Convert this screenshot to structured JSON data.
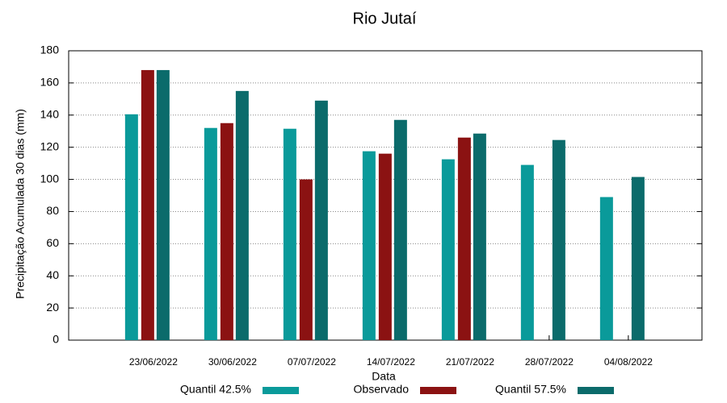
{
  "chart_data": {
    "type": "bar",
    "title": "Rio Jutaí",
    "x_label": "Data",
    "y_label": "Precipitação Acumulada 30 dias (mm)",
    "categories": [
      "23/06/2022",
      "30/06/2022",
      "07/07/2022",
      "14/07/2022",
      "21/07/2022",
      "28/07/2022",
      "04/08/2022"
    ],
    "series": [
      {
        "name": "Quantil 42.5%",
        "color": "#0a9a9a",
        "values": [
          140.5,
          132,
          131.5,
          117.5,
          112.5,
          109,
          89
        ]
      },
      {
        "name": "Observado",
        "color": "#8b1212",
        "values": [
          168,
          135,
          100,
          116,
          126,
          null,
          null
        ]
      },
      {
        "name": "Quantil 57.5%",
        "color": "#0b6b6b",
        "values": [
          168,
          155,
          149,
          137,
          128.5,
          124.5,
          101.5
        ]
      }
    ],
    "ylim": [
      0,
      180
    ],
    "yticks": [
      0,
      20,
      40,
      60,
      80,
      100,
      120,
      140,
      160,
      180
    ],
    "grid": true,
    "legend": "bottom"
  }
}
